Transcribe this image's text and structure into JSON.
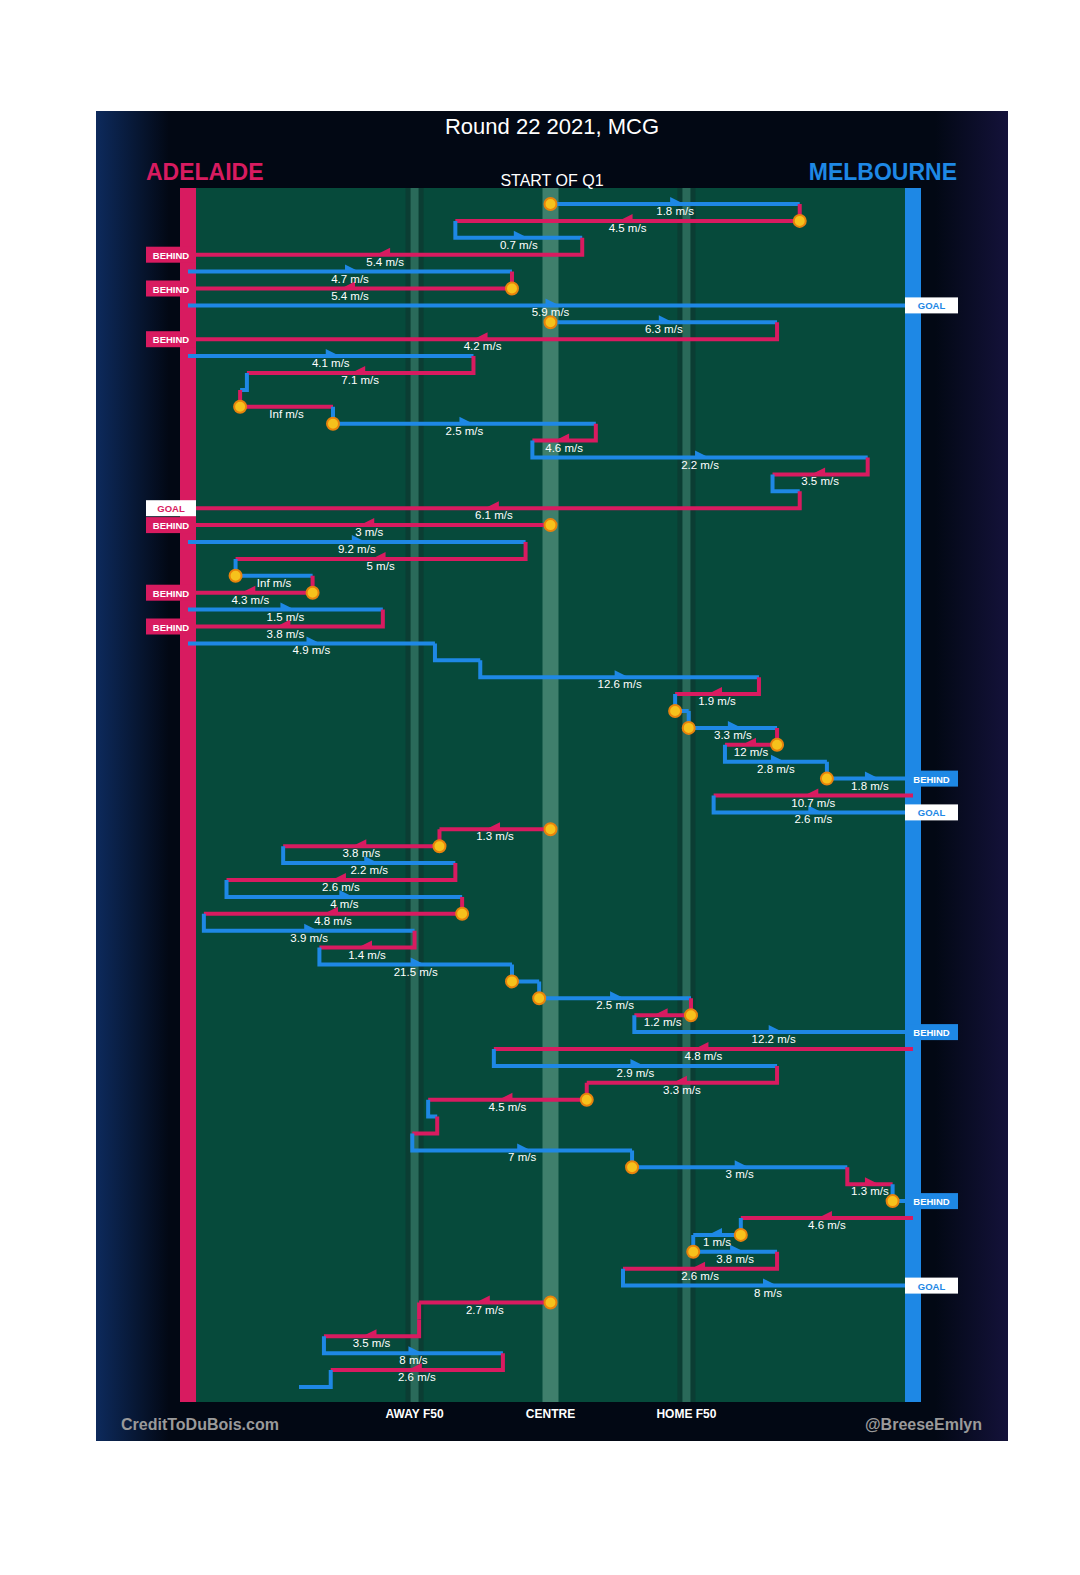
{
  "chart_data": {
    "type": "chain",
    "title": "Round 22 2021, MCG",
    "subtitle": "START OF Q1",
    "teams": [
      {
        "name": "ADELAIDE",
        "color": "#d81b60"
      },
      {
        "name": "MELBOURNE",
        "color": "#1e88e5"
      }
    ],
    "xlim": [
      0,
      160
    ],
    "xticks": [
      {
        "value": 50,
        "label": "AWAY F50"
      },
      {
        "value": 80,
        "label": "CENTRE"
      },
      {
        "value": 110,
        "label": "HOME F50"
      }
    ],
    "annotations": [
      "CreditToDuBois.com",
      "@BreeseEmlyn"
    ],
    "data_labels": true,
    "segments": [
      {
        "team": "MELBOURNE",
        "from": 80,
        "to": 135,
        "speed": 1.8,
        "speed_label": "1.8 m/s",
        "stoppage": true
      },
      {
        "team": "ADELAIDE",
        "from": 135,
        "to": 59,
        "speed": 4.5,
        "speed_label": "4.5 m/s",
        "stoppage": true
      },
      {
        "team": "MELBOURNE",
        "from": 59,
        "to": 87,
        "speed": 0.7,
        "speed_label": "0.7 m/s"
      },
      {
        "team": "ADELAIDE",
        "from": 87,
        "to": 0,
        "speed": 5.4,
        "speed_label": "5.4 m/s",
        "result": "BEHIND"
      },
      {
        "team": "MELBOURNE",
        "from": 0,
        "to": 71.5,
        "speed": 4.7,
        "speed_label": "4.7 m/s"
      },
      {
        "team": "ADELAIDE",
        "from": 71.5,
        "to": 0,
        "speed": 5.4,
        "speed_label": "5.4 m/s",
        "stoppage": true,
        "result": "BEHIND"
      },
      {
        "team": "MELBOURNE",
        "from": 0,
        "to": 160,
        "speed": 5.9,
        "speed_label": "5.9 m/s",
        "result": "GOAL"
      },
      {
        "team": "MELBOURNE",
        "from": 80,
        "to": 130,
        "speed": 6.3,
        "speed_label": "6.3 m/s",
        "stoppage": true
      },
      {
        "team": "ADELAIDE",
        "from": 130,
        "to": 0,
        "speed": 4.2,
        "speed_label": "4.2 m/s",
        "result": "BEHIND"
      },
      {
        "team": "MELBOURNE",
        "from": 0,
        "to": 63,
        "speed": 4.1,
        "speed_label": "4.1 m/s"
      },
      {
        "team": "ADELAIDE",
        "from": 63,
        "to": 13,
        "speed": 7.1,
        "speed_label": "7.1 m/s"
      },
      {
        "team": "MELBOURNE",
        "from": 13,
        "to": 11.5
      },
      {
        "team": "ADELAIDE",
        "from": 11.5,
        "to": 32,
        "speed": null,
        "speed_label": "Inf m/s",
        "stoppage": true
      },
      {
        "team": "MELBOURNE",
        "from": 32,
        "to": 90,
        "speed": 2.5,
        "speed_label": "2.5 m/s",
        "stoppage": true
      },
      {
        "team": "ADELAIDE",
        "from": 90,
        "to": 76,
        "speed": 4.6,
        "speed_label": "4.6 m/s"
      },
      {
        "team": "MELBOURNE",
        "from": 76,
        "to": 150,
        "speed": 2.2,
        "speed_label": "2.2 m/s"
      },
      {
        "team": "ADELAIDE",
        "from": 150,
        "to": 129,
        "speed": 3.5,
        "speed_label": "3.5 m/s"
      },
      {
        "team": "MELBOURNE",
        "from": 129,
        "to": 135
      },
      {
        "team": "ADELAIDE",
        "from": 135,
        "to": 0,
        "speed": 6.1,
        "speed_label": "6.1 m/s",
        "result": "GOAL"
      },
      {
        "team": "ADELAIDE",
        "from": 80,
        "to": 0,
        "speed": 3,
        "speed_label": "3 m/s",
        "stoppage": true,
        "result": "BEHIND"
      },
      {
        "team": "MELBOURNE",
        "from": 0,
        "to": 74.5,
        "speed": 9.2,
        "speed_label": "9.2 m/s"
      },
      {
        "team": "ADELAIDE",
        "from": 74.5,
        "to": 10.5,
        "speed": 5,
        "speed_label": "5 m/s"
      },
      {
        "team": "MELBOURNE",
        "from": 10.5,
        "to": 27.5,
        "speed": null,
        "speed_label": "Inf m/s",
        "stoppage": true
      },
      {
        "team": "ADELAIDE",
        "from": 27.5,
        "to": 0,
        "speed": 4.3,
        "speed_label": "4.3 m/s",
        "stoppage": true,
        "result": "BEHIND"
      },
      {
        "team": "MELBOURNE",
        "from": 0,
        "to": 43,
        "speed": 1.5,
        "speed_label": "1.5 m/s"
      },
      {
        "team": "ADELAIDE",
        "from": 43,
        "to": 0,
        "speed": 3.8,
        "speed_label": "3.8 m/s",
        "result": "BEHIND"
      },
      {
        "team": "MELBOURNE",
        "from": 0,
        "to": 54.5,
        "speed": 4.9,
        "speed_label": "4.9 m/s"
      },
      {
        "team": "MELBOURNE",
        "from": 54.5,
        "to": 64.5
      },
      {
        "team": "MELBOURNE",
        "from": 64.5,
        "to": 126,
        "speed": 12.6,
        "speed_label": "12.6 m/s"
      },
      {
        "team": "ADELAIDE",
        "from": 126,
        "to": 107.5,
        "speed": 1.9,
        "speed_label": "1.9 m/s"
      },
      {
        "team": "MELBOURNE",
        "from": 107.5,
        "to": 110.5,
        "stoppage": true
      },
      {
        "team": "MELBOURNE",
        "from": 110.5,
        "to": 130,
        "speed": 3.3,
        "speed_label": "3.3 m/s",
        "stoppage": true
      },
      {
        "team": "ADELAIDE",
        "from": 130,
        "to": 118.5,
        "speed": 12,
        "speed_label": "12 m/s",
        "stoppage": true
      },
      {
        "team": "MELBOURNE",
        "from": 118.5,
        "to": 141,
        "speed": 2.8,
        "speed_label": "2.8 m/s"
      },
      {
        "team": "MELBOURNE",
        "from": 141,
        "to": 160,
        "speed": 1.8,
        "speed_label": "1.8 m/s",
        "stoppage": true,
        "result": "BEHIND"
      },
      {
        "team": "ADELAIDE",
        "from": 160,
        "to": 116,
        "speed": 10.7,
        "speed_label": "10.7 m/s"
      },
      {
        "team": "MELBOURNE",
        "from": 116,
        "to": 160,
        "speed": 2.6,
        "speed_label": "2.6 m/s",
        "result": "GOAL"
      },
      {
        "team": "ADELAIDE",
        "from": 80,
        "to": 55.5,
        "speed": 1.3,
        "speed_label": "1.3 m/s",
        "stoppage": true
      },
      {
        "team": "ADELAIDE",
        "from": 55.5,
        "to": 21,
        "speed": 3.8,
        "speed_label": "3.8 m/s",
        "stoppage": true
      },
      {
        "team": "MELBOURNE",
        "from": 21,
        "to": 59,
        "speed": 2.2,
        "speed_label": "2.2 m/s"
      },
      {
        "team": "ADELAIDE",
        "from": 59,
        "to": 8.5,
        "speed": 2.6,
        "speed_label": "2.6 m/s"
      },
      {
        "team": "MELBOURNE",
        "from": 8.5,
        "to": 60.5,
        "speed": 4,
        "speed_label": "4 m/s"
      },
      {
        "team": "ADELAIDE",
        "from": 60.5,
        "to": 3.5,
        "speed": 4.8,
        "speed_label": "4.8 m/s",
        "stoppage": true
      },
      {
        "team": "MELBOURNE",
        "from": 3.5,
        "to": 50,
        "speed": 3.9,
        "speed_label": "3.9 m/s"
      },
      {
        "team": "ADELAIDE",
        "from": 50,
        "to": 29,
        "speed": 1.4,
        "speed_label": "1.4 m/s"
      },
      {
        "team": "MELBOURNE",
        "from": 29,
        "to": 71.5,
        "speed": 21.5,
        "speed_label": "21.5 m/s"
      },
      {
        "team": "MELBOURNE",
        "from": 71.5,
        "to": 77.5,
        "stoppage": true
      },
      {
        "team": "MELBOURNE",
        "from": 77.5,
        "to": 111,
        "speed": 2.5,
        "speed_label": "2.5 m/s",
        "stoppage": true
      },
      {
        "team": "ADELAIDE",
        "from": 111,
        "to": 98.5,
        "speed": 1.2,
        "speed_label": "1.2 m/s",
        "stoppage": true
      },
      {
        "team": "MELBOURNE",
        "from": 98.5,
        "to": 160,
        "speed": 12.2,
        "speed_label": "12.2 m/s",
        "result": "BEHIND"
      },
      {
        "team": "ADELAIDE",
        "from": 160,
        "to": 67.5,
        "speed": 4.8,
        "speed_label": "4.8 m/s"
      },
      {
        "team": "MELBOURNE",
        "from": 67.5,
        "to": 130,
        "speed": 2.9,
        "speed_label": "2.9 m/s"
      },
      {
        "team": "ADELAIDE",
        "from": 130,
        "to": 88,
        "speed": 3.3,
        "speed_label": "3.3 m/s"
      },
      {
        "team": "ADELAIDE",
        "from": 88,
        "to": 53,
        "speed": 4.5,
        "speed_label": "4.5 m/s",
        "stoppage": true
      },
      {
        "team": "MELBOURNE",
        "from": 53,
        "to": 55
      },
      {
        "team": "ADELAIDE",
        "from": 55,
        "to": 49.5
      },
      {
        "team": "MELBOURNE",
        "from": 49.5,
        "to": 98,
        "speed": 7,
        "speed_label": "7 m/s"
      },
      {
        "team": "MELBOURNE",
        "from": 98,
        "to": 145.5,
        "speed": 3,
        "speed_label": "3 m/s",
        "stoppage": true
      },
      {
        "team": "ADELAIDE",
        "from": 145.5,
        "to": 155.5,
        "speed": 1.3,
        "speed_label": "1.3 m/s"
      },
      {
        "team": "MELBOURNE",
        "from": 155.5,
        "to": 160,
        "stoppage": true,
        "result": "BEHIND"
      },
      {
        "team": "ADELAIDE",
        "from": 160,
        "to": 122,
        "speed": 4.6,
        "speed_label": "4.6 m/s"
      },
      {
        "team": "MELBOURNE",
        "from": 122,
        "to": 111.5,
        "speed": 1,
        "speed_label": "1 m/s",
        "stoppage": true
      },
      {
        "team": "MELBOURNE",
        "from": 111.5,
        "to": 130,
        "speed": 3.8,
        "speed_label": "3.8 m/s",
        "stoppage": true
      },
      {
        "team": "ADELAIDE",
        "from": 130,
        "to": 96,
        "speed": 2.6,
        "speed_label": "2.6 m/s"
      },
      {
        "team": "MELBOURNE",
        "from": 96,
        "to": 160,
        "speed": 8,
        "speed_label": "8 m/s",
        "result": "GOAL"
      },
      {
        "team": "ADELAIDE",
        "from": 80,
        "to": 51,
        "speed": 2.7,
        "speed_label": "2.7 m/s",
        "stoppage": true
      },
      {
        "team": "ADELAIDE",
        "from": 51,
        "to": 51
      },
      {
        "team": "ADELAIDE",
        "from": 51,
        "to": 30,
        "speed": 3.5,
        "speed_label": "3.5 m/s"
      },
      {
        "team": "MELBOURNE",
        "from": 30,
        "to": 69.5,
        "speed": 8,
        "speed_label": "8 m/s"
      },
      {
        "team": "ADELAIDE",
        "from": 69.5,
        "to": 31.5,
        "speed": 2.6,
        "speed_label": "2.6 m/s"
      },
      {
        "team": "MELBOURNE",
        "from": 31.5,
        "to": 24.5
      }
    ]
  }
}
